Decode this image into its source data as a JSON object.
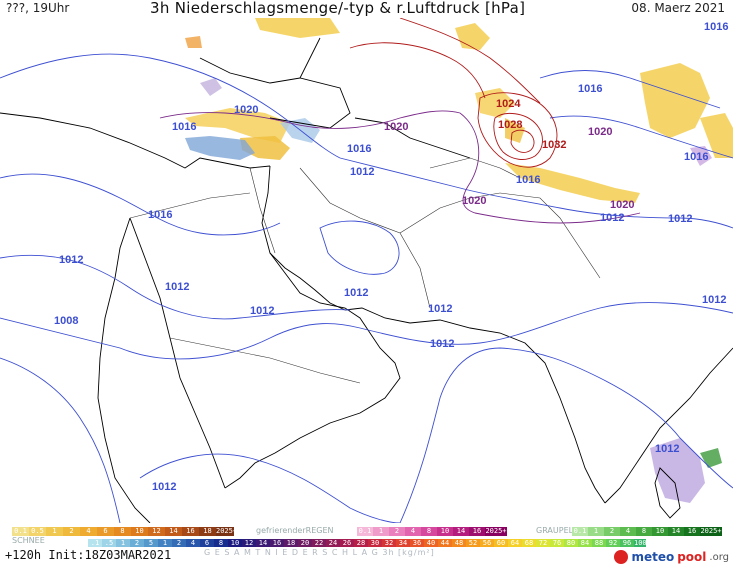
{
  "header": {
    "left_text": "???, 19Uhr",
    "title": "3h Niederschlagsmenge/-typ & r.Luftdruck [hPa]",
    "date": "08. Maerz 2021"
  },
  "map": {
    "isobar_color_low": "#3d4fd1",
    "isobar_color_high": "#b01a1a",
    "isobar_color_mid": "#7b2a8a",
    "isobar_labels": [
      {
        "text": "1012",
        "color": "#3d4fd1"
      },
      {
        "text": "1016",
        "color": "#3d4fd1"
      },
      {
        "text": "1020",
        "color": "#3d4fd1"
      },
      {
        "text": "1016",
        "color": "#3d4fd1"
      },
      {
        "text": "1020",
        "color": "#7b2a8a"
      },
      {
        "text": "1016",
        "color": "#3d4fd1"
      },
      {
        "text": "1012",
        "color": "#3d4fd1"
      },
      {
        "text": "1016",
        "color": "#3d4fd1"
      },
      {
        "text": "1020",
        "color": "#7b2a8a"
      },
      {
        "text": "1024",
        "color": "#b01a1a"
      },
      {
        "text": "1028",
        "color": "#b01a1a"
      },
      {
        "text": "1032",
        "color": "#b01a1a"
      },
      {
        "text": "1016",
        "color": "#3d4fd1"
      },
      {
        "text": "1020",
        "color": "#7b2a8a"
      },
      {
        "text": "1016",
        "color": "#3d4fd1"
      },
      {
        "text": "1012",
        "color": "#3d4fd1"
      },
      {
        "text": "1020",
        "color": "#7b2a8a"
      },
      {
        "text": "1012",
        "color": "#3d4fd1"
      },
      {
        "text": "1008",
        "color": "#3d4fd1"
      },
      {
        "text": "1016",
        "color": "#3d4fd1"
      },
      {
        "text": "1012",
        "color": "#3d4fd1"
      },
      {
        "text": "1012",
        "color": "#3d4fd1"
      },
      {
        "text": "1012",
        "color": "#3d4fd1"
      },
      {
        "text": "1008",
        "color": "#3d4fd1"
      },
      {
        "text": "1012",
        "color": "#3d4fd1"
      },
      {
        "text": "1012",
        "color": "#3d4fd1"
      },
      {
        "text": "1012",
        "color": "#3d4fd1"
      },
      {
        "text": "1012",
        "color": "#3d4fd1"
      },
      {
        "text": "1012",
        "color": "#3d4fd1"
      },
      {
        "text": "1012",
        "color": "#3d4fd1"
      },
      {
        "text": "1012",
        "color": "#3d4fd1"
      }
    ]
  },
  "legend": {
    "rain_label": "REGEN",
    "snow_label": "SCHNEE",
    "freezing_label": "gefrierenderREGEN",
    "graupel_label": "GRAUPEL",
    "total_label": "G E S A M T N I E D E R S C H L A G   3h   [kg/m²]",
    "rain_values": [
      "0.1",
      "0.5",
      "1",
      "2",
      "4",
      "6",
      "8",
      "10",
      "12",
      "14",
      "16",
      "18",
      "2025+"
    ],
    "freezing_values": [
      "0.1",
      "1",
      "2",
      "4",
      "8",
      "10",
      "14",
      "16",
      "2025+"
    ],
    "graupel_values": [
      "0.1",
      "1",
      "2",
      "4",
      "8",
      "10",
      "14",
      "16",
      "2025+"
    ],
    "snow_values": [
      ".1",
      ".5",
      "1",
      "2",
      "5",
      "1",
      "2",
      "4",
      "6",
      "8",
      "10",
      "12",
      "14",
      "16",
      "18",
      "20",
      "22",
      "24",
      "26",
      "28",
      "30",
      "32",
      "34",
      "36",
      "40",
      "44",
      "48",
      "52",
      "56",
      "60",
      "64",
      "68",
      "72",
      "76",
      "80",
      "84",
      "88",
      "92",
      "96",
      "100"
    ],
    "footer": "+120h Init:18Z03MAR2021",
    "logo_meteo": "meteo",
    "logo_pool": "pool",
    "logo_suffix": ".org"
  }
}
